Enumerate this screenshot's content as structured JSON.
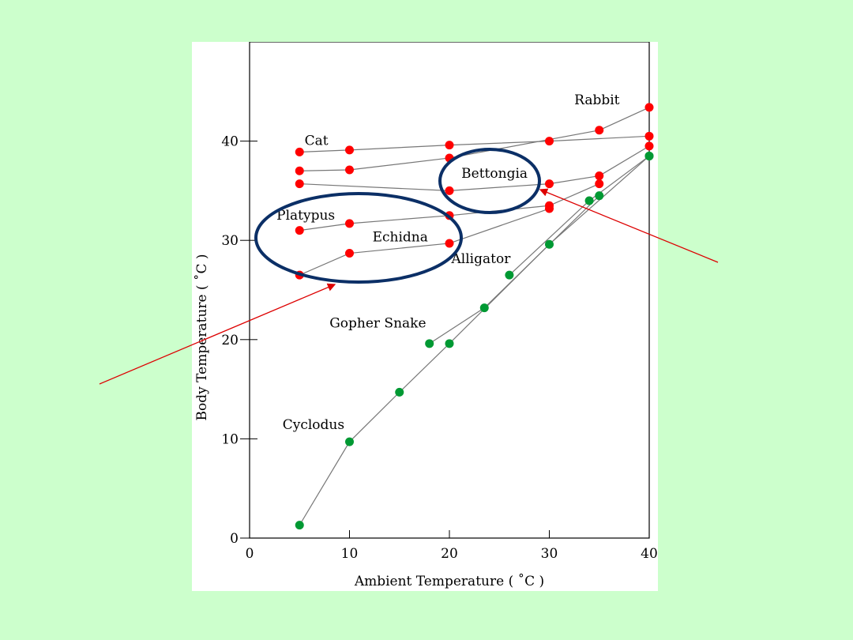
{
  "slide": {
    "background": "#ccffcc"
  },
  "chart_data": {
    "type": "line",
    "title": "",
    "xlabel": "Ambient Temperature ( ˚C )",
    "ylabel": "Body Temperature ( ˚C )",
    "xlim": [
      0,
      40
    ],
    "ylim": [
      0,
      50
    ],
    "xticks": [
      0,
      10,
      20,
      30,
      40
    ],
    "yticks": [
      0,
      10,
      20,
      30,
      40
    ],
    "grid": false,
    "colors": {
      "mammal": "#ff0000",
      "reptile": "#009933",
      "line": "#777777",
      "highlight": "#0b2f66",
      "arrow": "#dd0000"
    },
    "series": [
      {
        "name": "Cat",
        "group": "mammal",
        "x": [
          5,
          10,
          20,
          30,
          40
        ],
        "y": [
          38.9,
          39.1,
          39.6,
          40.0,
          40.5
        ]
      },
      {
        "name": "Rabbit",
        "group": "mammal",
        "x": [
          5,
          10,
          20,
          35,
          40
        ],
        "y": [
          37.0,
          37.1,
          38.3,
          41.1,
          43.4
        ]
      },
      {
        "name": "Bettongia",
        "group": "mammal",
        "x": [
          5,
          20,
          30,
          35,
          40
        ],
        "y": [
          35.7,
          35.0,
          35.7,
          36.5,
          39.5
        ]
      },
      {
        "name": "Platypus",
        "group": "mammal",
        "x": [
          5,
          10,
          20,
          30,
          35
        ],
        "y": [
          31.0,
          31.7,
          32.5,
          33.5,
          35.7
        ]
      },
      {
        "name": "Echidna",
        "group": "mammal",
        "x": [
          5,
          10,
          20,
          30
        ],
        "y": [
          26.5,
          28.7,
          29.7,
          33.2
        ]
      },
      {
        "name": "Alligator",
        "group": "reptile",
        "x": [
          26,
          34,
          40
        ],
        "y": [
          26.5,
          34.0,
          38.5
        ]
      },
      {
        "name": "Gopher Snake",
        "group": "reptile",
        "x": [
          18,
          23.5,
          35
        ],
        "y": [
          19.6,
          23.2,
          34.5
        ]
      },
      {
        "name": "Cyclodus",
        "group": "reptile",
        "x": [
          5,
          10,
          15,
          20,
          30,
          40
        ],
        "y": [
          1.3,
          9.7,
          14.7,
          19.6,
          29.6,
          38.5
        ]
      }
    ],
    "labels": [
      {
        "text": "Cat",
        "x": 5.5,
        "y": 39.6
      },
      {
        "text": "Rabbit",
        "x": 32.5,
        "y": 43.7
      },
      {
        "text": "Bettongia",
        "x": 21.2,
        "y": 36.3
      },
      {
        "text": "Platypus",
        "x": 2.7,
        "y": 32.1
      },
      {
        "text": "Echidna",
        "x": 12.3,
        "y": 29.9
      },
      {
        "text": "Alligator",
        "x": 20.2,
        "y": 27.7
      },
      {
        "text": "Gopher Snake",
        "x": 8.0,
        "y": 21.2
      },
      {
        "text": "Cyclodus",
        "x": 3.3,
        "y": 11.0
      }
    ]
  }
}
